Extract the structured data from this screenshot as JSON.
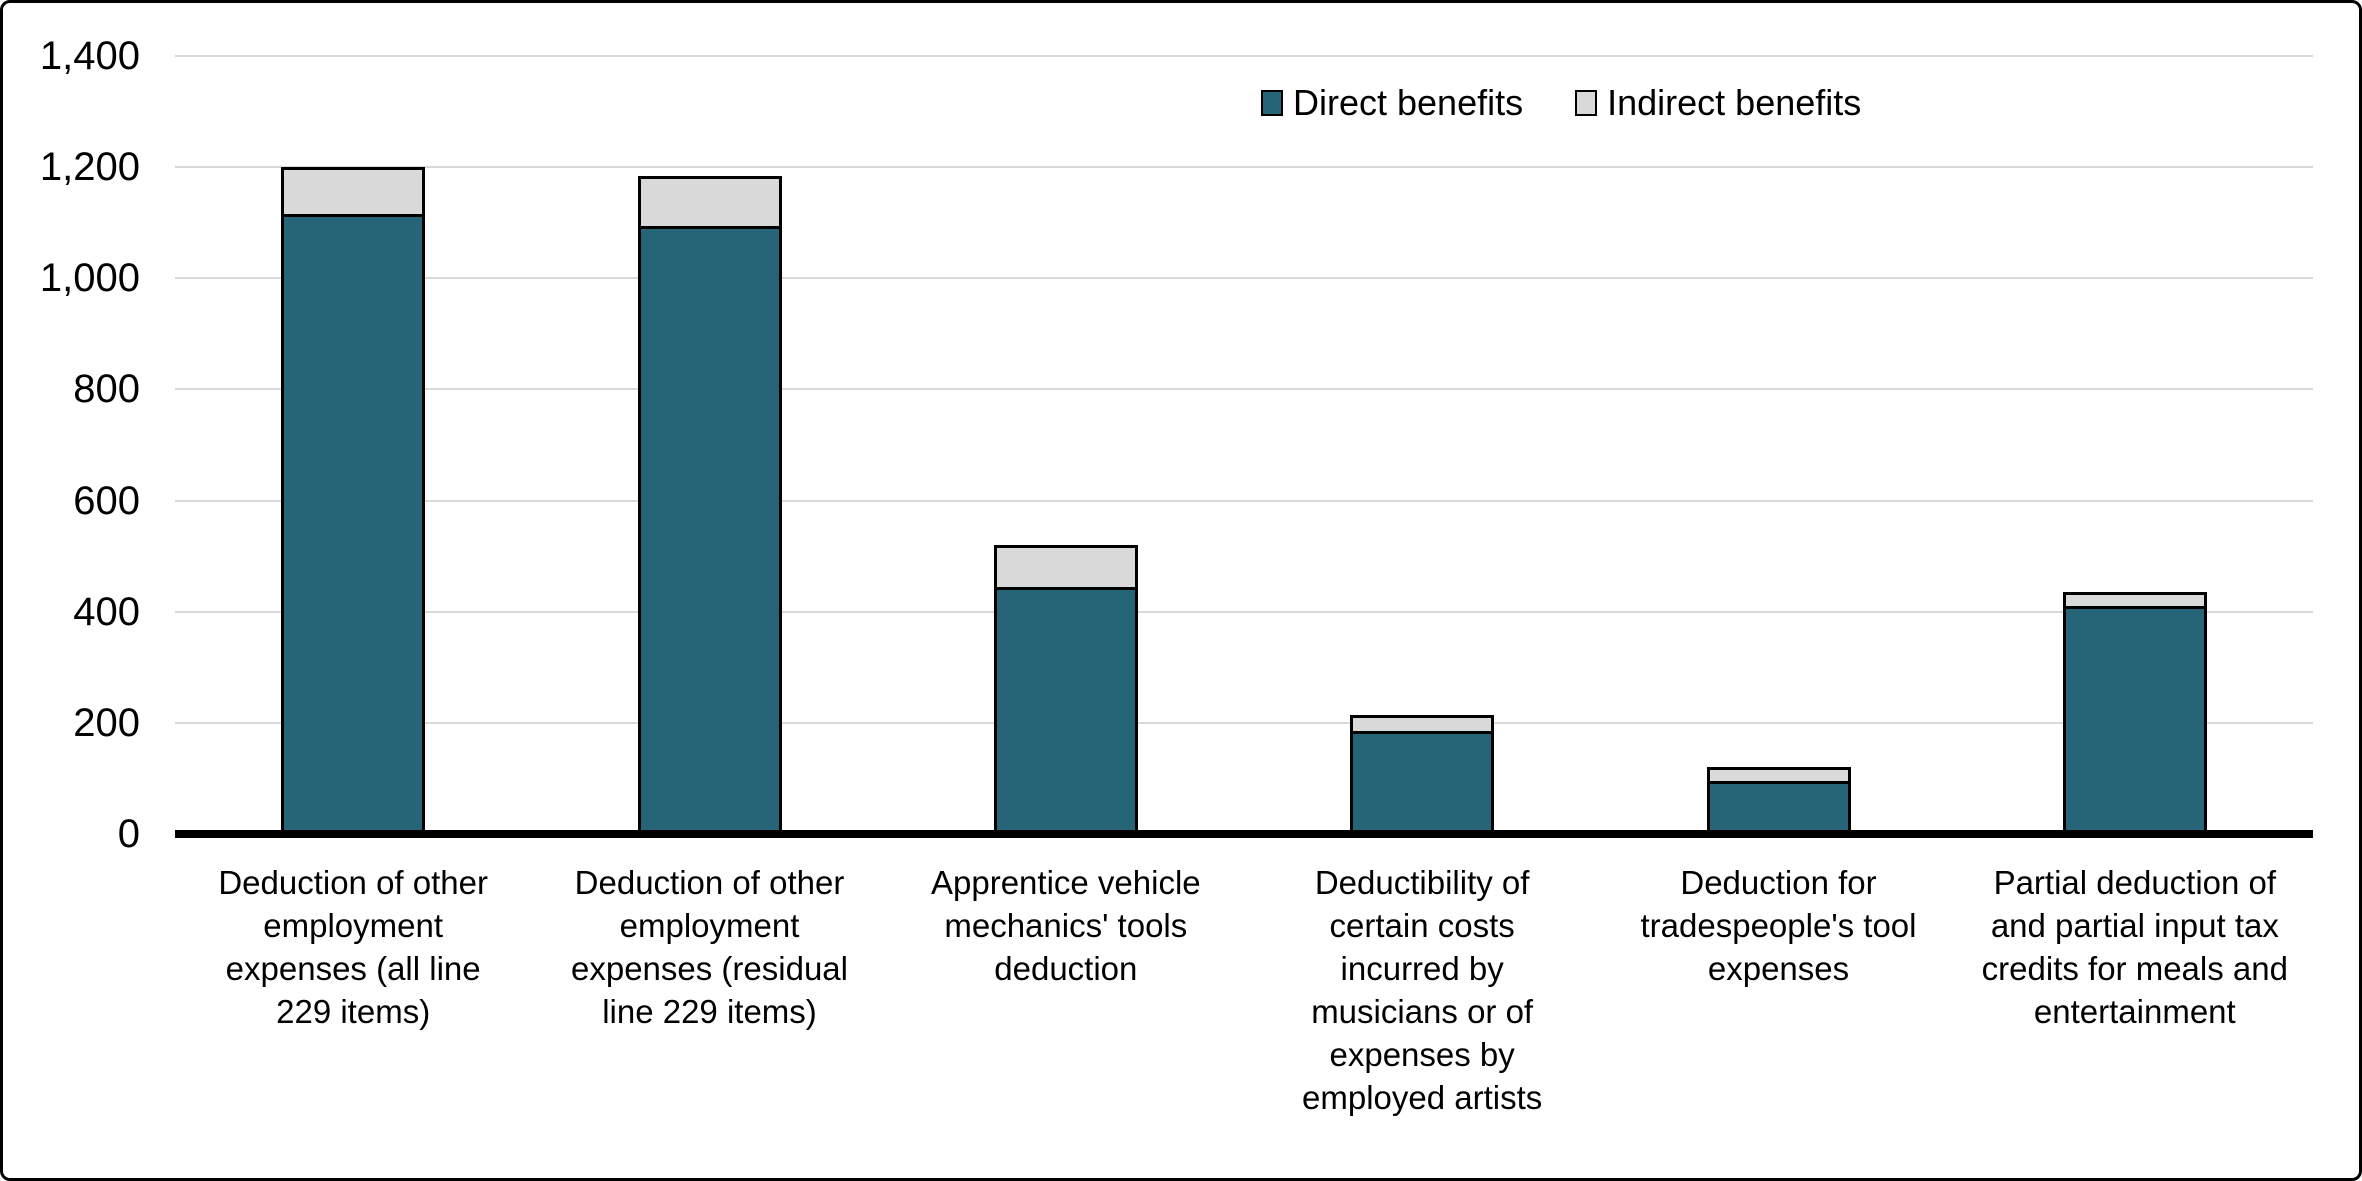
{
  "figure": {
    "background_color": "#ffffff",
    "frame_color": "#000000"
  },
  "legend": {
    "items": [
      {
        "label": "Direct benefits",
        "color": "#266578"
      },
      {
        "label": "Indirect benefits",
        "color": "#d9d9d9"
      }
    ]
  },
  "chart_data": {
    "type": "bar",
    "stacked": true,
    "orientation": "vertical",
    "categories": [
      "Deduction of other\nemployment\nexpenses (all line\n229 items)",
      "Deduction of other\nemployment\nexpenses (residual\nline 229 items)",
      "Apprentice vehicle\nmechanics' tools\ndeduction",
      "Deductibility of\ncertain costs\nincurred by\nmusicians or of\nexpenses by\nemployed artists",
      "Deduction for\ntradespeople's tool\nexpenses",
      "Partial deduction of\nand partial input tax\ncredits for meals and\nentertainment"
    ],
    "series": [
      {
        "name": "Direct benefits",
        "color": "#266578",
        "values": [
          1115,
          1095,
          445,
          185,
          95,
          410
        ]
      },
      {
        "name": "Indirect benefits",
        "color": "#d9d9d9",
        "values": [
          85,
          90,
          75,
          30,
          25,
          25
        ]
      }
    ],
    "totals": [
      1200,
      1185,
      520,
      215,
      120,
      435
    ],
    "ylim": [
      0,
      1400
    ],
    "ytick_interval": 200,
    "ytick_labels": [
      "0",
      "200",
      "400",
      "600",
      "800",
      "1,000",
      "1,200",
      "1,400"
    ],
    "grid": true,
    "gridline_color": "#d9d9d9",
    "axis_color": "#000000",
    "bar_outline_color": "#000000",
    "legend_position": "top-right"
  }
}
